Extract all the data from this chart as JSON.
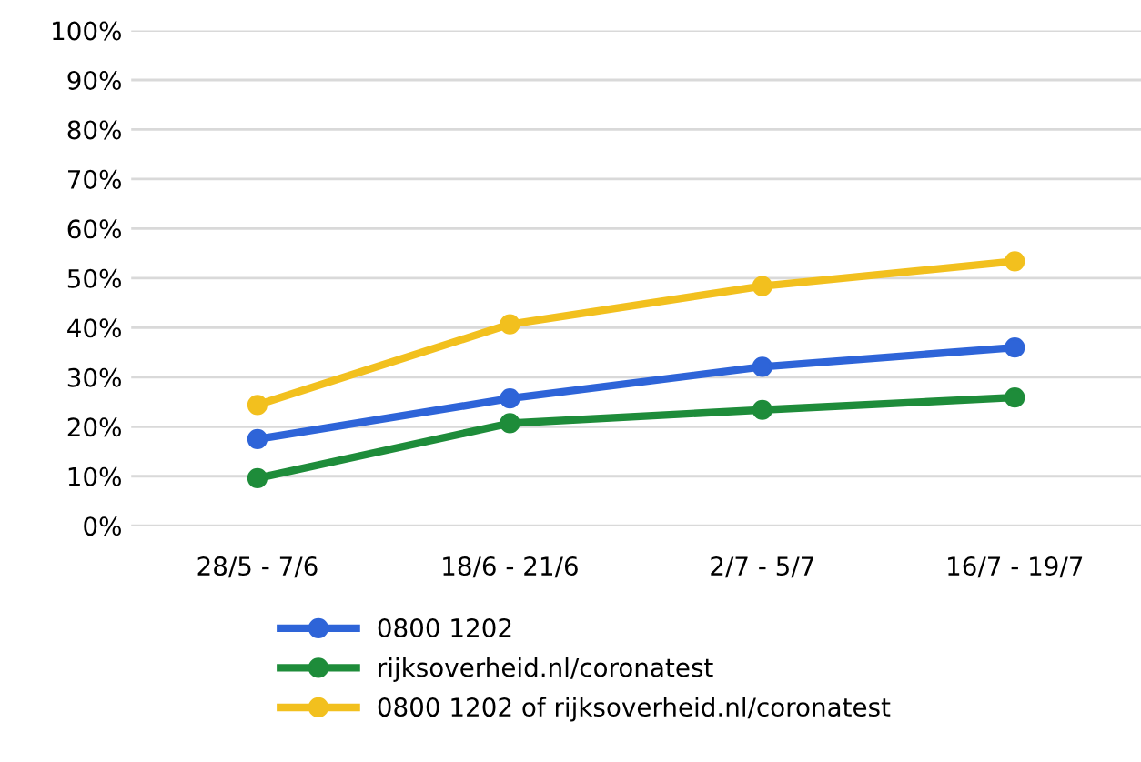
{
  "chart_data": {
    "type": "line",
    "categories": [
      "28/5 - 7/6",
      "18/6 - 21/6",
      "2/7 - 5/7",
      "16/7 - 19/7"
    ],
    "series": [
      {
        "name": "0800 1202",
        "color": "#2e64d8",
        "values": [
          17.5,
          25.7,
          32.1,
          36.0
        ]
      },
      {
        "name": "rijksoverheid.nl/coronatest",
        "color": "#1e8c3a",
        "values": [
          9.6,
          20.7,
          23.4,
          25.9
        ]
      },
      {
        "name": "0800 1202 of rijksoverheid.nl/coronatest",
        "color": "#f2c01e",
        "values": [
          24.4,
          40.7,
          48.4,
          53.4
        ]
      }
    ],
    "ylim": [
      0,
      100
    ],
    "yticks": [
      {
        "value": 0,
        "label": "0%"
      },
      {
        "value": 10,
        "label": "10%"
      },
      {
        "value": 20,
        "label": "20%"
      },
      {
        "value": 30,
        "label": "30%"
      },
      {
        "value": 40,
        "label": "40%"
      },
      {
        "value": 50,
        "label": "50%"
      },
      {
        "value": 60,
        "label": "60%"
      },
      {
        "value": 70,
        "label": "70%"
      },
      {
        "value": 80,
        "label": "80%"
      },
      {
        "value": 90,
        "label": "90%"
      },
      {
        "value": 100,
        "label": "100%"
      }
    ],
    "grid": "y",
    "legend": "bottom",
    "marker": "circle",
    "line_style": "solid"
  }
}
